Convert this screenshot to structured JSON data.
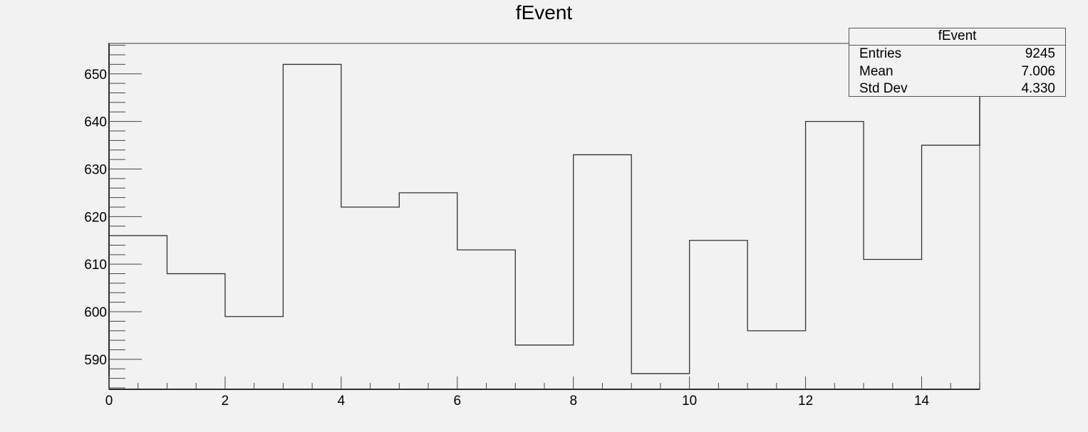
{
  "chart_data": {
    "type": "bar",
    "histogram": true,
    "title": "fEvent",
    "xlabel": "",
    "ylabel": "",
    "xlim": [
      0,
      15
    ],
    "ylim": [
      583.7,
      656.4
    ],
    "bin_edges": [
      0,
      1,
      2,
      3,
      4,
      5,
      6,
      7,
      8,
      9,
      10,
      11,
      12,
      13,
      14,
      15
    ],
    "values": [
      616,
      608,
      599,
      652,
      622,
      625,
      613,
      593,
      633,
      587,
      615,
      596,
      640,
      611,
      635
    ],
    "x_tick_labels": [
      "0",
      "2",
      "4",
      "6",
      "8",
      "10",
      "12",
      "14"
    ],
    "y_tick_labels": [
      "590",
      "600",
      "610",
      "620",
      "630",
      "640",
      "650"
    ],
    "grid": false,
    "legend": "none",
    "stats": {
      "title": "fEvent",
      "rows": [
        {
          "label": "Entries",
          "value": "9245"
        },
        {
          "label": "Mean",
          "value": "7.006"
        },
        {
          "label": "Std Dev",
          "value": "4.330"
        }
      ],
      "placement": "top-right"
    },
    "colors": {
      "background": "#f2f2f2",
      "line": "#333333"
    }
  }
}
